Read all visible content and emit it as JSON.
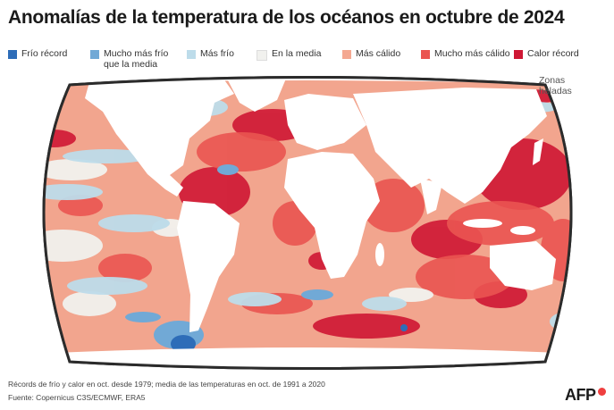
{
  "title": "Anomalías de la temperatura de los océanos en octubre de 2024",
  "legend": [
    {
      "label": "Frío récord",
      "color": "#2e6db8"
    },
    {
      "label": "Mucho más frío que la media",
      "color": "#71a9d6"
    },
    {
      "label": "Más frío",
      "color": "#bddcea"
    },
    {
      "label": "En la media",
      "color": "#f1f1ee"
    },
    {
      "label": "Más cálido",
      "color": "#f4a891"
    },
    {
      "label": "Mucho más cálido",
      "color": "#ea5551"
    },
    {
      "label": "Calor récord",
      "color": "#cf1734"
    }
  ],
  "frozen_label": "Zonas heladas",
  "footnote": {
    "line1": "Récords de frío y calor en oct. desde 1979; media de las temperaturas en oct. de 1991 a 2020",
    "line2": "Fuente: Copernicus C3S/ECMWF, ERA5"
  },
  "logo": "AFP",
  "colors": {
    "land": "#ffffff",
    "frame": "#2b2b2b",
    "ocean_base": "#f2a58e",
    "frozen": "#ffffff"
  }
}
